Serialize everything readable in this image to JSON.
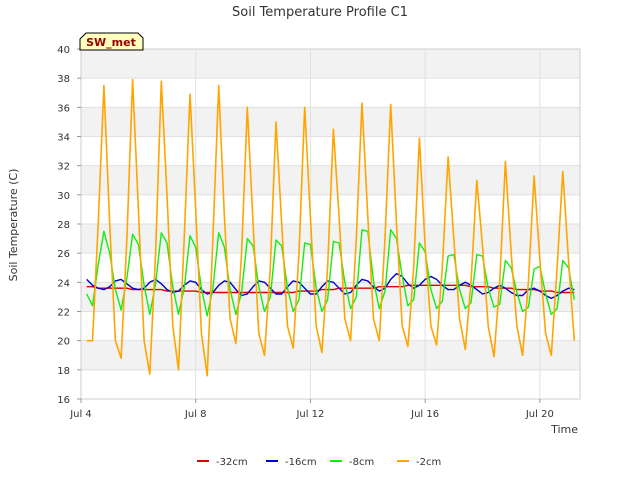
{
  "chart_data": {
    "type": "line",
    "title": "Soil Temperature Profile C1",
    "xlabel": "Time",
    "ylabel": "Soil Temperature (C)",
    "badge": "SW_met",
    "x_unit": "day of July",
    "xlim": [
      4.0,
      21.4
    ],
    "ylim": [
      16,
      40
    ],
    "yticks": [
      16,
      18,
      20,
      22,
      24,
      26,
      28,
      30,
      32,
      34,
      36,
      38,
      40
    ],
    "xticks": [
      {
        "value": 4,
        "label": "Jul 4"
      },
      {
        "value": 8,
        "label": "Jul 8"
      },
      {
        "value": 12,
        "label": "Jul 12"
      },
      {
        "value": 16,
        "label": "Jul 16"
      },
      {
        "value": 20,
        "label": "Jul 20"
      }
    ],
    "grid": true,
    "legend_position": "bottom",
    "x": [
      4.2,
      4.4,
      4.6,
      4.8,
      5.0,
      5.2,
      5.4,
      5.6,
      5.8,
      6.0,
      6.2,
      6.4,
      6.6,
      6.8,
      7.0,
      7.2,
      7.4,
      7.6,
      7.8,
      8.0,
      8.2,
      8.4,
      8.6,
      8.8,
      9.0,
      9.2,
      9.4,
      9.6,
      9.8,
      10.0,
      10.2,
      10.4,
      10.6,
      10.8,
      11.0,
      11.2,
      11.4,
      11.6,
      11.8,
      12.0,
      12.2,
      12.4,
      12.6,
      12.8,
      13.0,
      13.2,
      13.4,
      13.6,
      13.8,
      14.0,
      14.2,
      14.4,
      14.6,
      14.8,
      15.0,
      15.2,
      15.4,
      15.6,
      15.8,
      16.0,
      16.2,
      16.4,
      16.6,
      16.8,
      17.0,
      17.2,
      17.4,
      17.6,
      17.8,
      18.0,
      18.2,
      18.4,
      18.6,
      18.8,
      19.0,
      19.2,
      19.4,
      19.6,
      19.8,
      20.0,
      20.2,
      20.4,
      20.6,
      20.8,
      21.0,
      21.2
    ],
    "series": [
      {
        "name": "-32cm",
        "color": "#dd0000",
        "values": [
          23.7,
          23.7,
          23.6,
          23.6,
          23.6,
          23.6,
          23.6,
          23.6,
          23.5,
          23.5,
          23.5,
          23.5,
          23.5,
          23.5,
          23.4,
          23.4,
          23.4,
          23.4,
          23.4,
          23.4,
          23.3,
          23.3,
          23.3,
          23.3,
          23.3,
          23.3,
          23.3,
          23.3,
          23.3,
          23.3,
          23.3,
          23.3,
          23.3,
          23.3,
          23.3,
          23.3,
          23.3,
          23.4,
          23.4,
          23.4,
          23.4,
          23.5,
          23.5,
          23.5,
          23.6,
          23.6,
          23.6,
          23.6,
          23.6,
          23.6,
          23.6,
          23.7,
          23.7,
          23.7,
          23.7,
          23.7,
          23.8,
          23.8,
          23.8,
          23.8,
          23.8,
          23.8,
          23.8,
          23.8,
          23.8,
          23.8,
          23.8,
          23.7,
          23.7,
          23.7,
          23.7,
          23.6,
          23.6,
          23.6,
          23.6,
          23.5,
          23.5,
          23.5,
          23.5,
          23.4,
          23.4,
          23.4,
          23.3,
          23.3,
          23.3,
          23.3
        ]
      },
      {
        "name": "-16cm",
        "color": "#0000cc",
        "values": [
          24.2,
          23.8,
          23.6,
          23.5,
          23.7,
          24.1,
          24.2,
          23.9,
          23.6,
          23.5,
          23.6,
          24.0,
          24.2,
          23.9,
          23.5,
          23.3,
          23.4,
          23.8,
          24.1,
          24.0,
          23.5,
          23.2,
          23.3,
          23.8,
          24.1,
          24.0,
          23.5,
          23.1,
          23.2,
          23.7,
          24.1,
          24.0,
          23.6,
          23.2,
          23.2,
          23.7,
          24.1,
          24.0,
          23.6,
          23.2,
          23.2,
          23.7,
          24.1,
          24.0,
          23.6,
          23.2,
          23.3,
          23.8,
          24.2,
          24.1,
          23.7,
          23.4,
          23.6,
          24.2,
          24.6,
          24.4,
          23.9,
          23.6,
          23.8,
          24.2,
          24.4,
          24.2,
          23.8,
          23.5,
          23.5,
          23.8,
          24.0,
          23.8,
          23.5,
          23.2,
          23.3,
          23.6,
          23.8,
          23.6,
          23.3,
          23.1,
          23.1,
          23.5,
          23.6,
          23.4,
          23.1,
          22.9,
          23.1,
          23.4,
          23.6,
          23.5
        ]
      },
      {
        "name": "-8cm",
        "color": "#11ee11",
        "values": [
          23.2,
          22.4,
          25.2,
          27.5,
          26.0,
          23.5,
          22.1,
          24.3,
          27.3,
          26.6,
          23.8,
          21.8,
          23.9,
          27.4,
          26.7,
          23.7,
          21.8,
          23.6,
          27.2,
          26.4,
          23.6,
          21.7,
          23.6,
          27.4,
          26.4,
          23.5,
          21.8,
          23.3,
          27.0,
          26.5,
          23.7,
          22.0,
          23.0,
          26.9,
          26.5,
          23.6,
          22.0,
          22.8,
          26.7,
          26.6,
          23.6,
          22.0,
          22.8,
          26.8,
          26.7,
          24.0,
          22.2,
          23.0,
          27.6,
          27.5,
          24.1,
          22.2,
          23.4,
          27.6,
          27.0,
          24.4,
          22.4,
          22.8,
          26.7,
          26.1,
          23.5,
          22.2,
          22.7,
          25.8,
          25.9,
          23.5,
          22.2,
          22.6,
          25.9,
          25.8,
          23.6,
          22.3,
          22.5,
          25.5,
          25.0,
          23.3,
          22.0,
          22.3,
          24.9,
          25.1,
          23.2,
          21.8,
          22.2,
          25.5,
          25.0,
          22.8
        ]
      },
      {
        "name": "-2cm",
        "color": "#ffa500",
        "values": [
          20.0,
          20.0,
          28.0,
          37.5,
          28.0,
          20.0,
          18.8,
          27.0,
          37.9,
          29.0,
          20.0,
          17.7,
          26.0,
          37.8,
          30.0,
          21.0,
          18.0,
          27.0,
          36.9,
          29.0,
          20.5,
          17.6,
          27.0,
          37.5,
          28.5,
          21.5,
          19.8,
          26.0,
          36.0,
          28.0,
          20.5,
          19.0,
          25.0,
          35.0,
          28.0,
          21.0,
          19.5,
          26.0,
          36.0,
          28.5,
          21.0,
          19.2,
          25.0,
          34.5,
          28.5,
          21.5,
          20.0,
          27.0,
          36.3,
          28.5,
          21.5,
          20.0,
          27.0,
          36.2,
          28.0,
          21.0,
          19.6,
          25.0,
          33.9,
          26.5,
          21.0,
          19.7,
          25.0,
          32.6,
          27.0,
          21.5,
          19.4,
          24.0,
          31.0,
          26.5,
          21.0,
          18.9,
          24.0,
          32.3,
          26.0,
          21.0,
          19.0,
          24.0,
          31.3,
          25.5,
          20.5,
          19.0,
          25.0,
          31.6,
          25.5,
          20.0
        ]
      }
    ]
  }
}
